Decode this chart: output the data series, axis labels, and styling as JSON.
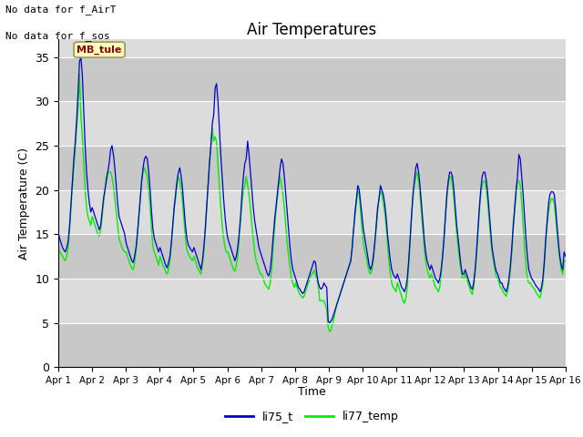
{
  "title": "Air Temperatures",
  "xlabel": "Time",
  "ylabel": "Air Temperature (C)",
  "ylim": [
    0,
    37
  ],
  "yticks": [
    0,
    5,
    10,
    15,
    20,
    25,
    30,
    35
  ],
  "line1_label": "li75_t",
  "line2_label": "li77_temp",
  "line1_color": "#0000cc",
  "line2_color": "#00ee00",
  "annotation_text1": "No data for f_AirT",
  "annotation_text2": "No data for f_sos",
  "box_label": "MB_tule",
  "box_facecolor": "#ffffbb",
  "box_edgecolor": "#999955",
  "box_text_color": "#880000",
  "bg_light": "#dcdcdc",
  "bg_dark": "#c8c8c8",
  "x_tick_labels": [
    "Apr 1",
    "Apr 2",
    "Apr 3",
    "Apr 4",
    "Apr 5",
    "Apr 6",
    "Apr 7",
    "Apr 8",
    "Apr 9",
    "Apr 10",
    "Apr 11",
    "Apr 12",
    "Apr 13",
    "Apr 14",
    "Apr 15",
    "Apr 16"
  ],
  "n_days": 15,
  "li75_t": [
    15.2,
    14.5,
    14.0,
    13.5,
    13.2,
    13.0,
    13.5,
    14.2,
    16.0,
    18.5,
    21.0,
    23.5,
    25.5,
    28.0,
    31.0,
    34.5,
    35.0,
    33.0,
    29.0,
    25.0,
    22.0,
    20.0,
    18.5,
    17.5,
    18.0,
    17.5,
    17.0,
    16.5,
    16.0,
    15.5,
    16.0,
    17.5,
    19.0,
    20.0,
    21.0,
    22.0,
    23.0,
    24.5,
    25.0,
    24.0,
    22.5,
    20.5,
    18.5,
    17.0,
    16.5,
    16.0,
    15.5,
    15.0,
    14.0,
    13.5,
    13.0,
    12.5,
    12.0,
    11.8,
    12.5,
    13.5,
    15.0,
    17.0,
    19.0,
    21.0,
    22.5,
    23.5,
    23.8,
    23.5,
    22.0,
    20.0,
    17.5,
    15.5,
    14.5,
    14.0,
    13.5,
    13.0,
    13.5,
    13.0,
    12.5,
    12.0,
    11.5,
    11.2,
    11.8,
    12.5,
    14.0,
    16.0,
    18.0,
    19.5,
    21.0,
    22.0,
    22.5,
    21.5,
    20.0,
    18.0,
    16.0,
    14.5,
    13.8,
    13.5,
    13.2,
    13.0,
    13.5,
    13.0,
    12.5,
    12.0,
    11.5,
    11.0,
    12.0,
    13.5,
    15.5,
    18.0,
    20.5,
    23.0,
    25.0,
    27.5,
    28.5,
    31.5,
    32.0,
    30.0,
    27.0,
    24.0,
    21.5,
    19.0,
    17.0,
    15.5,
    14.5,
    14.0,
    13.5,
    13.0,
    12.5,
    12.0,
    12.5,
    13.5,
    15.0,
    17.0,
    19.5,
    21.5,
    23.0,
    23.5,
    25.5,
    24.0,
    22.0,
    20.0,
    18.0,
    16.5,
    15.5,
    14.5,
    13.5,
    13.0,
    12.5,
    12.0,
    11.5,
    11.0,
    10.5,
    10.3,
    11.0,
    12.5,
    14.5,
    16.5,
    18.0,
    19.5,
    21.0,
    22.5,
    23.5,
    23.0,
    21.5,
    19.5,
    17.5,
    15.5,
    13.5,
    12.0,
    11.0,
    10.5,
    10.0,
    9.5,
    9.0,
    8.8,
    8.5,
    8.3,
    8.5,
    9.0,
    9.5,
    10.0,
    10.5,
    11.0,
    11.5,
    12.0,
    11.8,
    10.5,
    9.5,
    9.0,
    8.8,
    9.0,
    9.5,
    9.2,
    9.0,
    5.2,
    5.0,
    5.2,
    5.5,
    6.0,
    6.5,
    7.0,
    7.5,
    8.0,
    8.5,
    9.0,
    9.5,
    10.0,
    10.5,
    11.0,
    11.5,
    12.0,
    13.5,
    15.5,
    17.5,
    19.0,
    20.5,
    20.0,
    18.5,
    17.0,
    15.5,
    14.5,
    13.5,
    12.5,
    11.5,
    11.0,
    11.5,
    12.5,
    14.0,
    16.0,
    18.0,
    19.0,
    20.5,
    20.0,
    19.5,
    18.5,
    17.0,
    15.0,
    13.5,
    12.0,
    11.0,
    10.5,
    10.2,
    10.0,
    10.5,
    10.0,
    9.5,
    9.0,
    8.8,
    8.5,
    9.0,
    10.0,
    12.0,
    14.5,
    17.0,
    19.5,
    21.0,
    22.5,
    23.0,
    22.0,
    20.5,
    18.5,
    16.5,
    14.5,
    13.0,
    12.0,
    11.5,
    11.0,
    11.5,
    11.0,
    10.5,
    10.0,
    9.8,
    9.5,
    10.0,
    11.0,
    12.5,
    14.5,
    17.0,
    19.5,
    21.0,
    22.0,
    22.0,
    21.5,
    20.0,
    18.0,
    16.0,
    14.5,
    13.0,
    11.5,
    10.5,
    10.5,
    11.0,
    10.5,
    10.0,
    9.5,
    9.0,
    8.8,
    9.5,
    11.0,
    13.0,
    15.5,
    18.0,
    20.0,
    21.5,
    22.0,
    22.0,
    21.0,
    19.5,
    17.5,
    15.5,
    13.5,
    12.5,
    11.5,
    10.8,
    10.5,
    10.0,
    9.5,
    9.5,
    9.0,
    8.8,
    8.5,
    9.0,
    10.0,
    11.5,
    13.5,
    16.0,
    18.0,
    20.0,
    21.5,
    24.0,
    23.5,
    21.5,
    19.5,
    17.0,
    14.5,
    12.5,
    11.0,
    10.5,
    10.0,
    9.8,
    9.5,
    9.2,
    9.0,
    8.8,
    8.5,
    9.0,
    10.0,
    12.0,
    14.5,
    16.5,
    18.5,
    19.5,
    19.8,
    19.8,
    19.5,
    18.0,
    16.0,
    14.0,
    12.5,
    11.5,
    11.0,
    13.0,
    12.5
  ],
  "li77_temp": [
    13.5,
    13.0,
    12.8,
    12.5,
    12.2,
    12.0,
    12.5,
    13.5,
    15.5,
    18.0,
    20.5,
    22.5,
    24.5,
    27.0,
    29.0,
    33.0,
    28.5,
    26.0,
    23.0,
    20.0,
    18.0,
    17.0,
    16.5,
    16.0,
    17.0,
    16.5,
    16.0,
    15.5,
    15.0,
    14.8,
    15.5,
    17.0,
    18.5,
    20.0,
    21.5,
    22.0,
    22.0,
    22.0,
    21.5,
    20.5,
    19.0,
    17.5,
    16.0,
    14.5,
    14.0,
    13.5,
    13.2,
    13.0,
    13.0,
    12.5,
    12.0,
    11.5,
    11.2,
    11.0,
    11.8,
    13.0,
    15.0,
    17.0,
    19.0,
    21.0,
    22.0,
    22.5,
    22.0,
    21.5,
    20.0,
    18.0,
    15.5,
    13.5,
    13.0,
    12.5,
    12.0,
    11.5,
    12.5,
    12.0,
    11.5,
    11.2,
    10.8,
    10.5,
    11.0,
    12.0,
    13.8,
    15.8,
    17.8,
    19.0,
    20.5,
    21.5,
    21.0,
    20.0,
    18.5,
    16.5,
    14.5,
    13.2,
    12.8,
    12.5,
    12.2,
    12.0,
    12.5,
    12.0,
    11.5,
    11.0,
    10.8,
    10.5,
    11.5,
    13.0,
    15.5,
    18.0,
    20.5,
    23.0,
    25.0,
    27.0,
    25.5,
    26.0,
    25.5,
    23.0,
    20.5,
    18.0,
    16.0,
    14.5,
    13.5,
    13.0,
    13.0,
    12.5,
    12.0,
    11.5,
    11.0,
    10.8,
    11.5,
    12.5,
    14.5,
    16.5,
    18.5,
    20.0,
    20.5,
    21.5,
    20.5,
    19.5,
    18.0,
    16.0,
    14.5,
    13.0,
    12.0,
    11.5,
    11.0,
    10.5,
    10.5,
    10.0,
    9.5,
    9.2,
    9.0,
    8.8,
    9.5,
    11.0,
    13.5,
    15.5,
    17.5,
    19.0,
    20.5,
    21.5,
    20.5,
    19.5,
    18.0,
    16.0,
    14.0,
    12.5,
    11.2,
    10.0,
    9.5,
    9.0,
    9.5,
    9.0,
    8.5,
    8.2,
    8.0,
    7.8,
    8.0,
    8.5,
    9.0,
    9.5,
    10.0,
    10.5,
    10.5,
    11.0,
    10.5,
    10.0,
    9.2,
    7.5,
    7.5,
    7.5,
    7.5,
    7.0,
    6.5,
    4.5,
    4.0,
    4.2,
    4.8,
    5.5,
    6.2,
    7.0,
    7.5,
    8.0,
    8.5,
    9.0,
    9.5,
    10.0,
    10.5,
    11.0,
    11.5,
    12.0,
    13.5,
    15.5,
    17.0,
    18.5,
    20.0,
    19.5,
    17.5,
    15.5,
    14.0,
    13.0,
    12.5,
    11.5,
    10.8,
    10.5,
    11.0,
    12.0,
    14.0,
    15.5,
    17.5,
    19.0,
    20.0,
    19.5,
    18.5,
    17.5,
    16.0,
    14.0,
    12.0,
    10.5,
    9.5,
    9.0,
    8.8,
    8.5,
    9.5,
    9.0,
    8.5,
    8.0,
    7.5,
    7.2,
    7.8,
    9.0,
    11.5,
    14.0,
    17.0,
    19.0,
    20.5,
    21.5,
    22.0,
    21.0,
    19.5,
    17.5,
    15.5,
    13.5,
    12.0,
    11.0,
    10.5,
    10.0,
    10.5,
    10.0,
    9.5,
    9.0,
    8.8,
    8.5,
    9.0,
    10.5,
    12.5,
    14.5,
    17.0,
    19.0,
    20.5,
    21.5,
    21.5,
    20.5,
    19.0,
    17.0,
    15.0,
    13.5,
    12.0,
    11.0,
    10.0,
    10.0,
    10.5,
    10.0,
    9.5,
    9.0,
    8.5,
    8.2,
    9.0,
    10.5,
    12.5,
    15.0,
    17.5,
    19.5,
    20.5,
    21.0,
    21.0,
    20.0,
    18.5,
    16.5,
    14.5,
    13.0,
    12.0,
    11.0,
    10.2,
    10.0,
    9.5,
    9.0,
    8.8,
    8.5,
    8.2,
    8.0,
    8.5,
    9.5,
    11.0,
    13.0,
    15.5,
    17.5,
    19.5,
    21.0,
    21.0,
    20.5,
    18.5,
    16.0,
    13.5,
    11.5,
    10.0,
    9.5,
    9.5,
    9.2,
    9.0,
    8.8,
    8.5,
    8.2,
    8.0,
    7.8,
    8.5,
    9.5,
    11.5,
    14.0,
    16.0,
    17.5,
    18.5,
    19.0,
    19.0,
    18.5,
    17.0,
    15.0,
    13.5,
    12.0,
    11.0,
    10.5,
    12.0,
    12.0
  ]
}
